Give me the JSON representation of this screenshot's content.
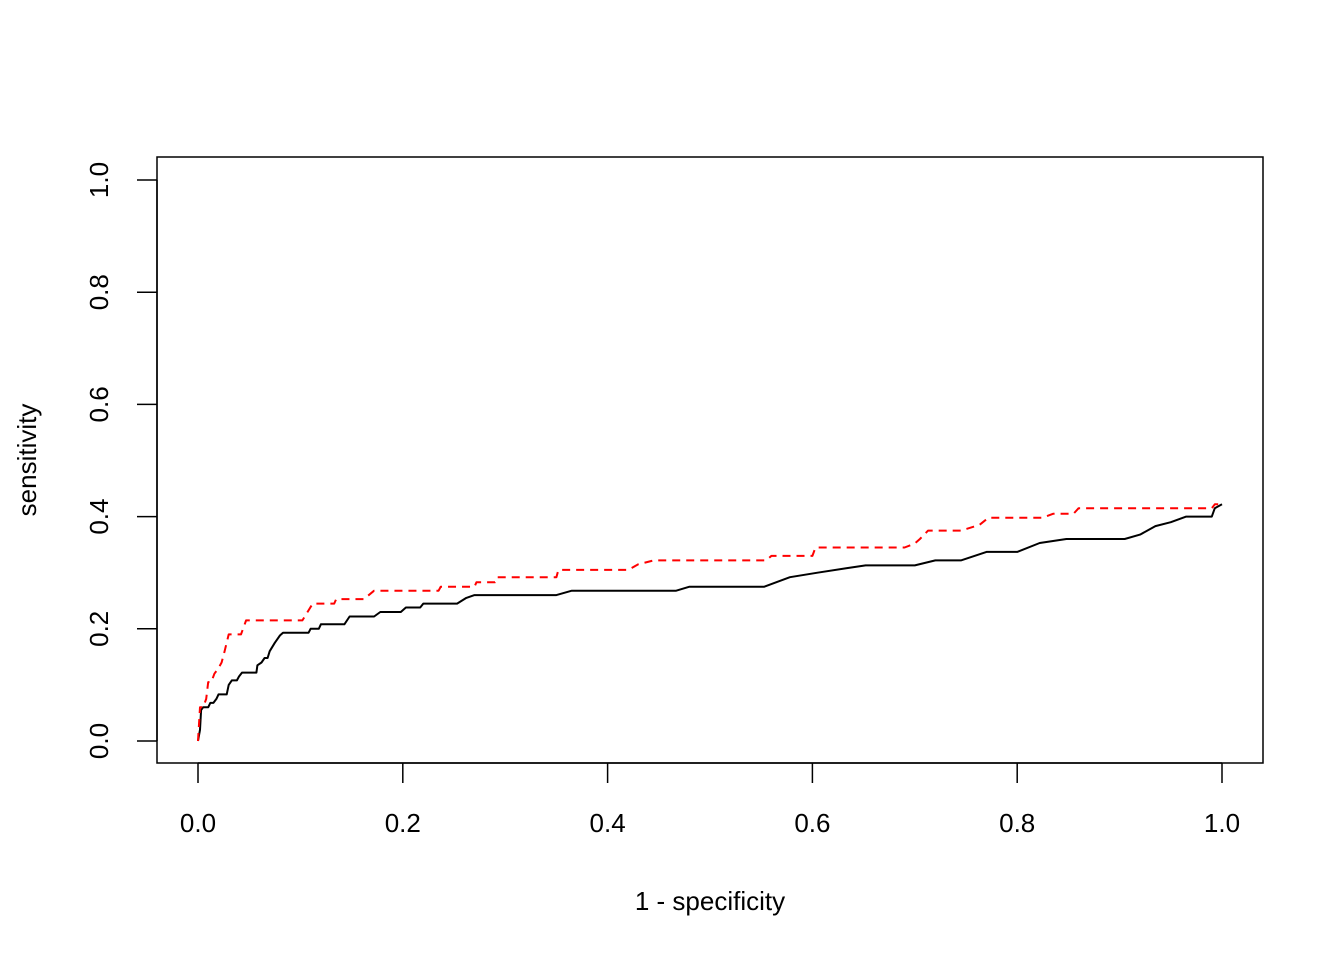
{
  "chart_data": {
    "type": "line",
    "title": "",
    "xlabel": "1 - specificity",
    "ylabel": "sensitivity",
    "xlim": [
      0,
      1
    ],
    "ylim": [
      0,
      1
    ],
    "x_ticks": [
      "0.0",
      "0.2",
      "0.4",
      "0.6",
      "0.8",
      "1.0"
    ],
    "y_ticks": [
      "0.0",
      "0.2",
      "0.4",
      "0.6",
      "0.8",
      "1.0"
    ],
    "grid": false,
    "legend": "none",
    "series": [
      {
        "color": "#000000",
        "style": "solid",
        "points": [
          [
            0.0,
            0.0
          ],
          [
            0.002,
            0.02
          ],
          [
            0.003,
            0.055
          ],
          [
            0.005,
            0.06
          ],
          [
            0.01,
            0.06
          ],
          [
            0.012,
            0.068
          ],
          [
            0.015,
            0.068
          ],
          [
            0.018,
            0.075
          ],
          [
            0.02,
            0.083
          ],
          [
            0.028,
            0.083
          ],
          [
            0.03,
            0.1
          ],
          [
            0.033,
            0.108
          ],
          [
            0.038,
            0.108
          ],
          [
            0.04,
            0.115
          ],
          [
            0.043,
            0.122
          ],
          [
            0.057,
            0.122
          ],
          [
            0.058,
            0.135
          ],
          [
            0.062,
            0.14
          ],
          [
            0.065,
            0.148
          ],
          [
            0.068,
            0.148
          ],
          [
            0.07,
            0.16
          ],
          [
            0.075,
            0.175
          ],
          [
            0.08,
            0.188
          ],
          [
            0.083,
            0.193
          ],
          [
            0.108,
            0.193
          ],
          [
            0.11,
            0.2
          ],
          [
            0.118,
            0.2
          ],
          [
            0.12,
            0.208
          ],
          [
            0.143,
            0.208
          ],
          [
            0.148,
            0.222
          ],
          [
            0.172,
            0.222
          ],
          [
            0.178,
            0.23
          ],
          [
            0.198,
            0.23
          ],
          [
            0.203,
            0.238
          ],
          [
            0.217,
            0.238
          ],
          [
            0.22,
            0.245
          ],
          [
            0.253,
            0.245
          ],
          [
            0.262,
            0.255
          ],
          [
            0.27,
            0.26
          ],
          [
            0.35,
            0.26
          ],
          [
            0.365,
            0.268
          ],
          [
            0.455,
            0.268
          ],
          [
            0.467,
            0.268
          ],
          [
            0.48,
            0.275
          ],
          [
            0.553,
            0.275
          ],
          [
            0.578,
            0.292
          ],
          [
            0.605,
            0.3
          ],
          [
            0.633,
            0.308
          ],
          [
            0.652,
            0.313
          ],
          [
            0.7,
            0.313
          ],
          [
            0.72,
            0.322
          ],
          [
            0.745,
            0.322
          ],
          [
            0.77,
            0.337
          ],
          [
            0.8,
            0.337
          ],
          [
            0.822,
            0.353
          ],
          [
            0.848,
            0.36
          ],
          [
            0.905,
            0.36
          ],
          [
            0.92,
            0.368
          ],
          [
            0.935,
            0.383
          ],
          [
            0.95,
            0.39
          ],
          [
            0.965,
            0.4
          ],
          [
            0.99,
            0.4
          ],
          [
            0.993,
            0.415
          ],
          [
            1.0,
            0.422
          ]
        ]
      },
      {
        "color": "#ff0000",
        "style": "dashed",
        "points": [
          [
            0.0,
            0.0
          ],
          [
            0.002,
            0.06
          ],
          [
            0.005,
            0.06
          ],
          [
            0.008,
            0.075
          ],
          [
            0.01,
            0.105
          ],
          [
            0.013,
            0.105
          ],
          [
            0.016,
            0.12
          ],
          [
            0.02,
            0.13
          ],
          [
            0.023,
            0.14
          ],
          [
            0.026,
            0.16
          ],
          [
            0.03,
            0.19
          ],
          [
            0.042,
            0.19
          ],
          [
            0.047,
            0.215
          ],
          [
            0.102,
            0.215
          ],
          [
            0.112,
            0.245
          ],
          [
            0.133,
            0.245
          ],
          [
            0.135,
            0.253
          ],
          [
            0.162,
            0.253
          ],
          [
            0.172,
            0.268
          ],
          [
            0.235,
            0.268
          ],
          [
            0.237,
            0.275
          ],
          [
            0.27,
            0.275
          ],
          [
            0.272,
            0.283
          ],
          [
            0.29,
            0.283
          ],
          [
            0.292,
            0.292
          ],
          [
            0.35,
            0.292
          ],
          [
            0.352,
            0.305
          ],
          [
            0.42,
            0.305
          ],
          [
            0.43,
            0.315
          ],
          [
            0.445,
            0.322
          ],
          [
            0.555,
            0.322
          ],
          [
            0.56,
            0.33
          ],
          [
            0.6,
            0.33
          ],
          [
            0.603,
            0.345
          ],
          [
            0.69,
            0.345
          ],
          [
            0.7,
            0.352
          ],
          [
            0.705,
            0.36
          ],
          [
            0.713,
            0.375
          ],
          [
            0.745,
            0.375
          ],
          [
            0.763,
            0.385
          ],
          [
            0.772,
            0.398
          ],
          [
            0.825,
            0.398
          ],
          [
            0.835,
            0.405
          ],
          [
            0.855,
            0.405
          ],
          [
            0.86,
            0.415
          ],
          [
            0.99,
            0.415
          ],
          [
            0.993,
            0.422
          ],
          [
            1.0,
            0.422
          ]
        ]
      }
    ]
  }
}
